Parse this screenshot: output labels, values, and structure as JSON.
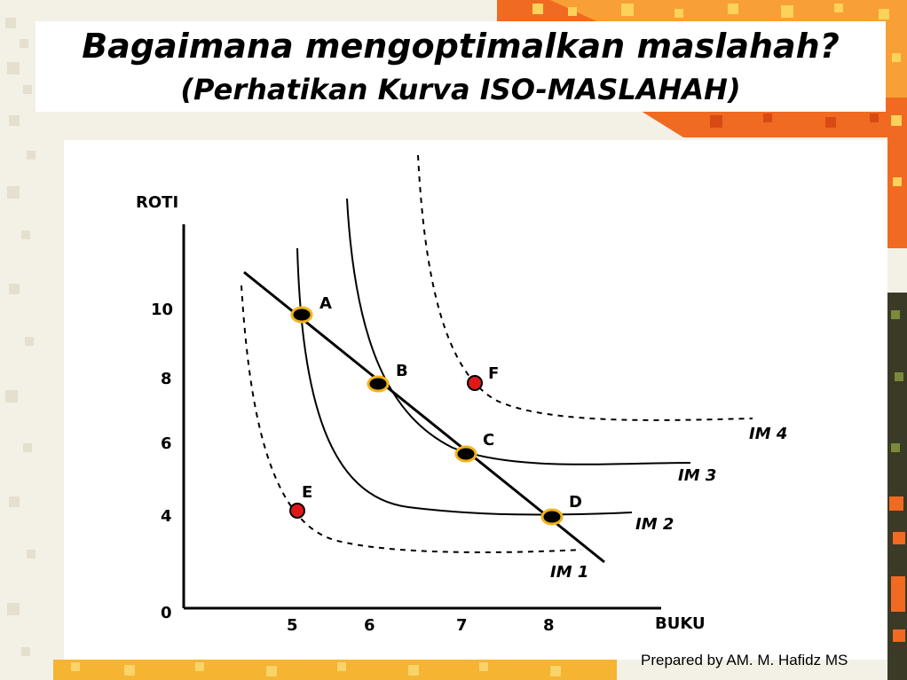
{
  "title": {
    "line1": "Bagaimana mengoptimalkan maslahah?",
    "line2": "(Perhatikan Kurva ISO-MASLAHAH)"
  },
  "chart_data": {
    "type": "diagram",
    "xlabel": "BUKU",
    "ylabel": "ROTI",
    "origin_label": "0",
    "x_ticks": [
      5,
      6,
      7,
      8
    ],
    "y_ticks": [
      10,
      8,
      6,
      4
    ],
    "curves": [
      {
        "name": "IM 1",
        "style": "dashed"
      },
      {
        "name": "IM 2",
        "style": "solid"
      },
      {
        "name": "IM 3",
        "style": "solid"
      },
      {
        "name": "IM 4",
        "style": "dashed"
      }
    ],
    "points": [
      {
        "label": "A",
        "color": "black"
      },
      {
        "label": "B",
        "color": "black"
      },
      {
        "label": "C",
        "color": "black"
      },
      {
        "label": "D",
        "color": "black"
      },
      {
        "label": "E",
        "color": "red"
      },
      {
        "label": "F",
        "color": "red"
      }
    ],
    "colors": {
      "highlight": "#f2b318",
      "red_point": "#e01818",
      "line": "#000000"
    }
  },
  "footer": {
    "credit": "Prepared by AM. M. Hafidz MS"
  }
}
